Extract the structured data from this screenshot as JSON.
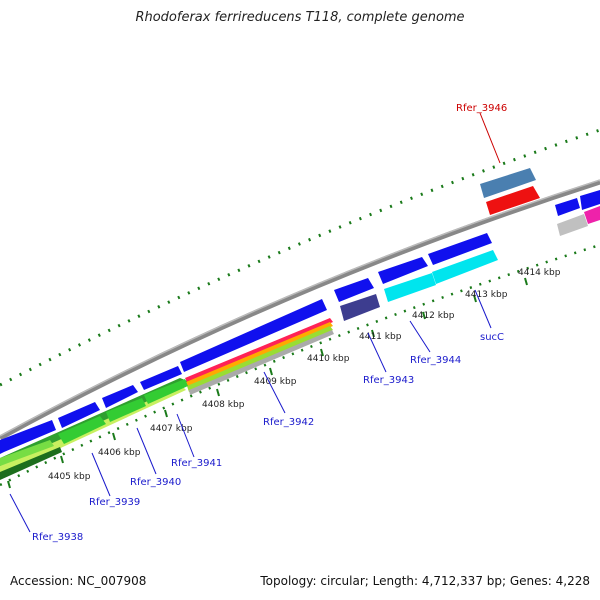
{
  "title": "Rhodoferax ferrireducens T118, complete genome",
  "footer": {
    "accession": "Accession: NC_007908",
    "stats": "Topology: circular; Length: 4,712,337 bp; Genes: 4,228"
  },
  "colors": {
    "backbone": "#888888",
    "tick": "#1a7a1a",
    "gene_blue": "#1010ee",
    "label_blue": "#1a1acc",
    "label_red": "#cc0000",
    "cyan": "#00e5ee",
    "green": "#33cc33",
    "dark_slate": "#3d3d8f",
    "steel": "#4a7fb0",
    "red": "#ee1111",
    "magenta": "#ee22aa",
    "gray": "#c0c0c0"
  },
  "ticks": [
    "4405 kbp",
    "4406 kbp",
    "4407 kbp",
    "4408 kbp",
    "4409 kbp",
    "4410 kbp",
    "4411 kbp",
    "4412 kbp",
    "4413 kbp",
    "4414 kbp"
  ],
  "genes": [
    {
      "label": "Rfer_3938",
      "color": "label_blue"
    },
    {
      "label": "Rfer_3939",
      "color": "label_blue"
    },
    {
      "label": "Rfer_3940",
      "color": "label_blue"
    },
    {
      "label": "Rfer_3941",
      "color": "label_blue"
    },
    {
      "label": "Rfer_3942",
      "color": "label_blue"
    },
    {
      "label": "Rfer_3943",
      "color": "label_blue"
    },
    {
      "label": "Rfer_3944",
      "color": "label_blue"
    },
    {
      "label": "sucC",
      "color": "label_blue"
    },
    {
      "label": "Rfer_3946",
      "color": "label_red"
    }
  ]
}
